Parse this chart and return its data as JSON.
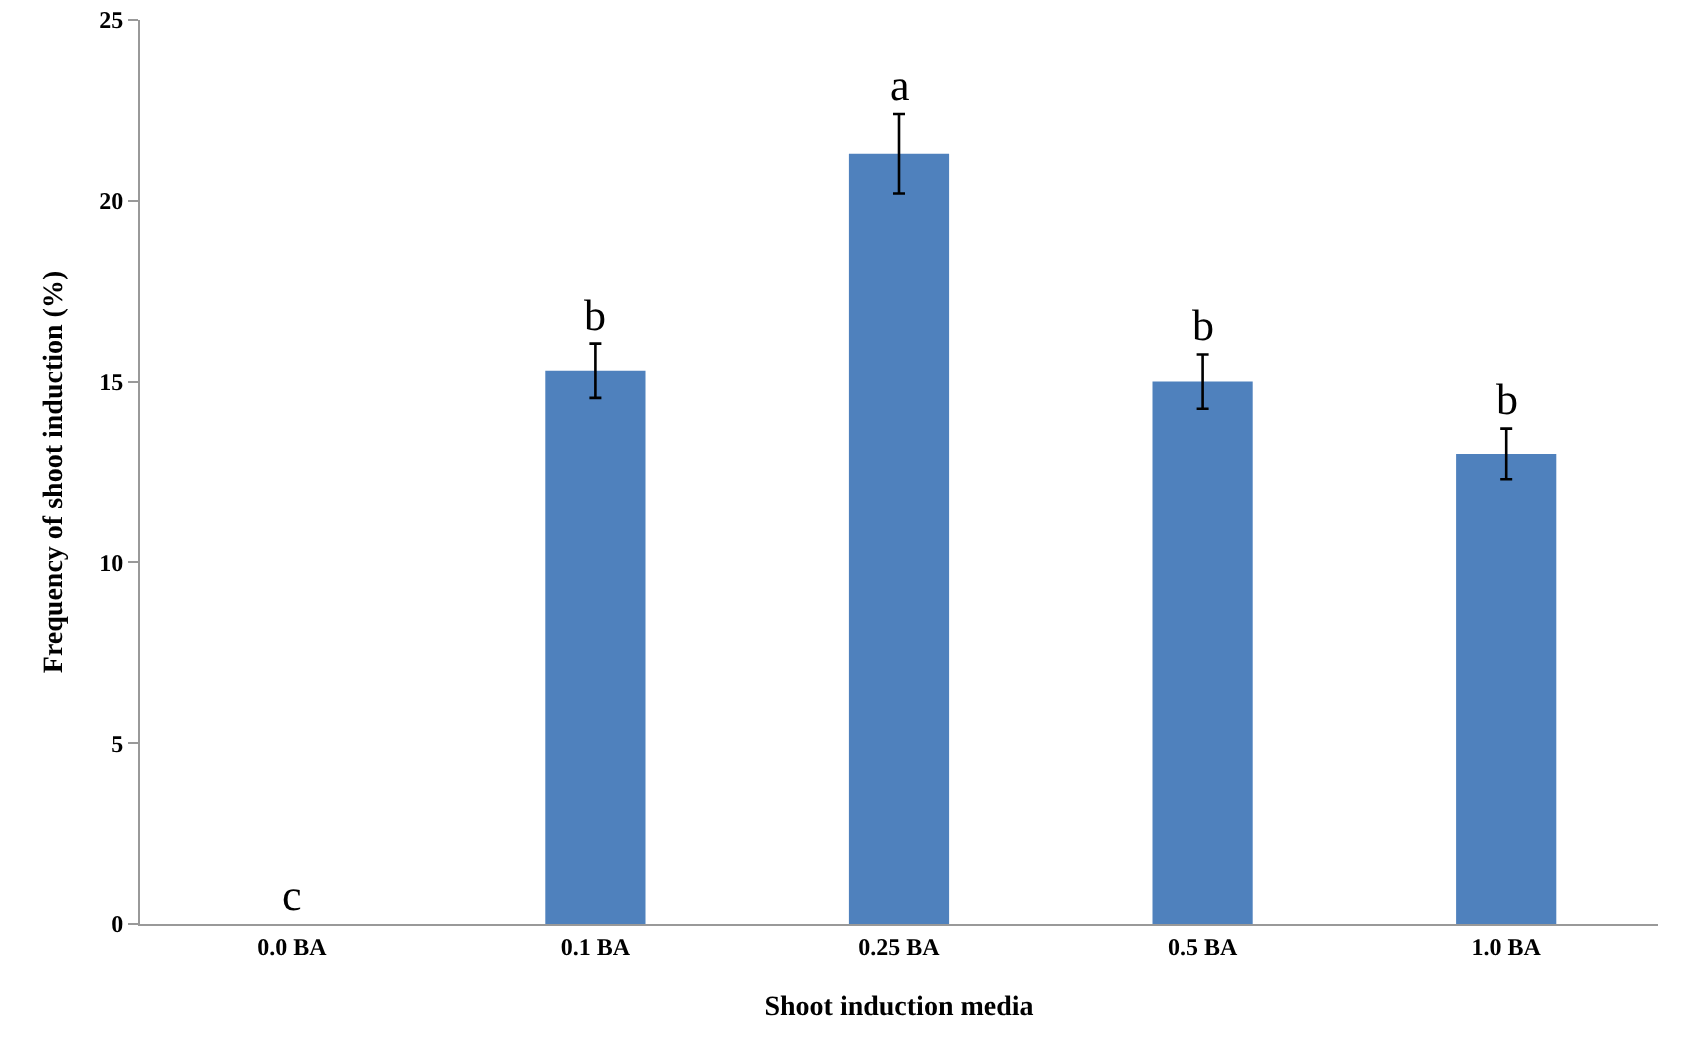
{
  "chart_data": {
    "type": "bar",
    "xlabel": "Shoot induction media",
    "ylabel": "Frequency of shoot induction (%)",
    "categories": [
      "0.0 BA",
      "0.1 BA",
      "0.25 BA",
      "0.5 BA",
      "1.0 BA"
    ],
    "values": [
      0,
      15.3,
      21.3,
      15.0,
      13.0
    ],
    "errors": [
      null,
      0.75,
      1.1,
      0.75,
      0.7
    ],
    "color": "#4f81bd",
    "ylim": [
      0,
      25
    ],
    "yticks": [
      0,
      5,
      10,
      15,
      20,
      25
    ],
    "grid": false,
    "annotations": [
      {
        "text": "c",
        "x": "0.0 BA",
        "y": 0
      },
      {
        "text": "b",
        "x": "0.1 BA",
        "y": 16.05
      },
      {
        "text": "a",
        "x": "0.25 BA",
        "y": 22.4
      },
      {
        "text": "b",
        "x": "0.5 BA",
        "y": 15.75
      },
      {
        "text": "b",
        "x": "1.0 BA",
        "y": 13.7
      }
    ]
  }
}
